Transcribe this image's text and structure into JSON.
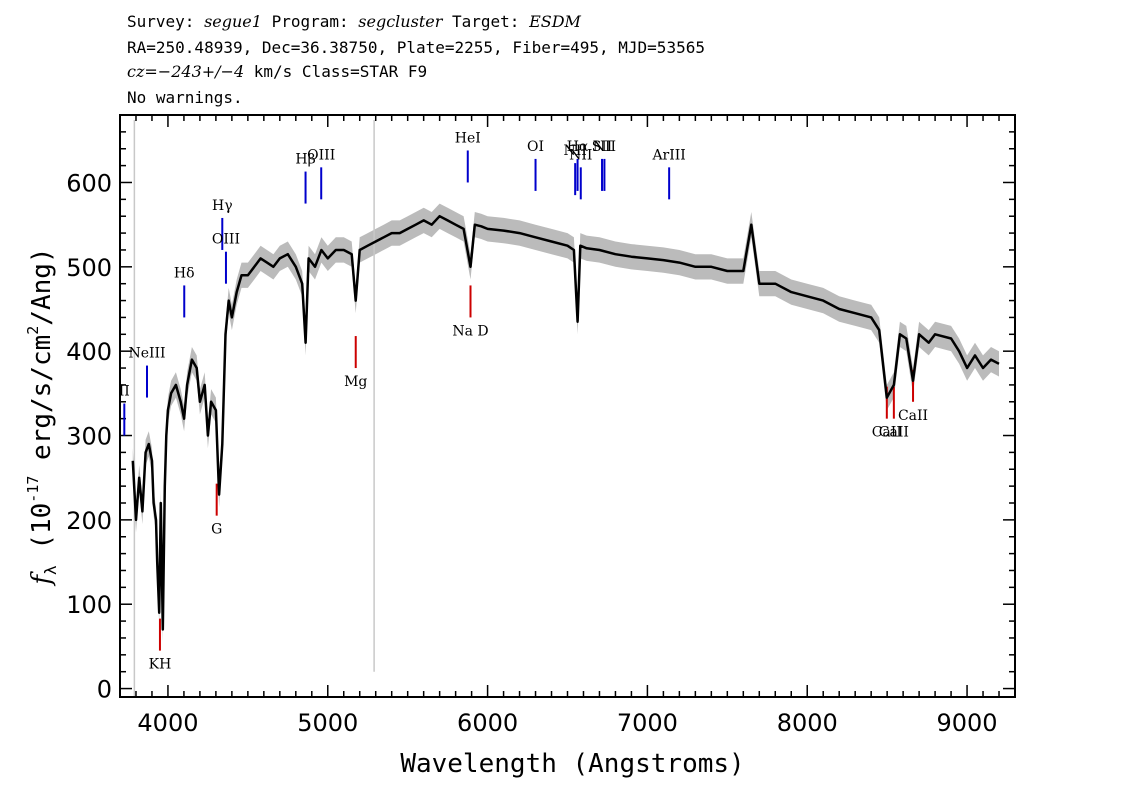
{
  "header": {
    "survey_label": "Survey:",
    "survey": "segue1",
    "program_label": "Program:",
    "program": "segcluster",
    "target_label": "Target:",
    "target": "ESDM",
    "line2": "RA=250.48939, Dec=36.38750, Plate=2255, Fiber=495, MJD=53565",
    "cz_label": "cz=",
    "cz_value": "−243+/−4",
    "cz_rest": " km/s Class=STAR F9",
    "warnings": "No warnings."
  },
  "chart_data": {
    "type": "line",
    "xlabel": "Wavelength (Angstroms)",
    "ylabel": "f_λ (10^-17 erg/s/cm^2/Ang)",
    "xlim": [
      3700,
      9300
    ],
    "ylim": [
      -10,
      680
    ],
    "xticks": [
      4000,
      5000,
      6000,
      7000,
      8000,
      9000
    ],
    "yticks": [
      0,
      100,
      200,
      300,
      400,
      500,
      600
    ],
    "colors": {
      "flux": "#000000",
      "error_band": "#bbbbbb",
      "emission": "#0000cc",
      "absorption": "#cc0000"
    },
    "series": [
      {
        "x": [
          3780,
          3800,
          3820,
          3840,
          3860,
          3880,
          3900,
          3910,
          3925,
          3933,
          3945,
          3955,
          3968,
          3980,
          3990,
          4000,
          4020,
          4050,
          4080,
          4101,
          4120,
          4150,
          4180,
          4200,
          4230,
          4250,
          4270,
          4300,
          4320,
          4340,
          4360,
          4380,
          4400,
          4430,
          4460,
          4500,
          4540,
          4580,
          4620,
          4660,
          4700,
          4750,
          4800,
          4840,
          4861,
          4880,
          4920,
          4960,
          5000,
          5050,
          5100,
          5150,
          5175,
          5200,
          5250,
          5300,
          5350,
          5400,
          5450,
          5500,
          5550,
          5600,
          5650,
          5700,
          5750,
          5800,
          5850,
          5893,
          5920,
          5960,
          6000,
          6100,
          6200,
          6300,
          6400,
          6500,
          6540,
          6563,
          6580,
          6620,
          6700,
          6800,
          6900,
          7000,
          7100,
          7200,
          7300,
          7400,
          7500,
          7600,
          7650,
          7700,
          7800,
          7900,
          8000,
          8100,
          8200,
          8300,
          8400,
          8450,
          8498,
          8542,
          8580,
          8620,
          8662,
          8700,
          8760,
          8800,
          8900,
          8950,
          9000,
          9050,
          9100,
          9150,
          9200
        ],
        "y": [
          270,
          200,
          250,
          210,
          280,
          290,
          270,
          220,
          200,
          150,
          90,
          220,
          70,
          240,
          300,
          330,
          350,
          360,
          340,
          320,
          360,
          390,
          380,
          340,
          360,
          300,
          340,
          330,
          230,
          290,
          420,
          460,
          440,
          470,
          490,
          490,
          500,
          510,
          505,
          500,
          510,
          515,
          500,
          480,
          410,
          510,
          500,
          520,
          510,
          520,
          520,
          515,
          460,
          520,
          525,
          530,
          535,
          540,
          540,
          545,
          550,
          555,
          550,
          560,
          555,
          550,
          545,
          500,
          550,
          548,
          545,
          543,
          540,
          535,
          530,
          525,
          520,
          435,
          525,
          522,
          520,
          515,
          512,
          510,
          508,
          505,
          500,
          500,
          495,
          495,
          550,
          480,
          480,
          470,
          465,
          460,
          450,
          445,
          440,
          425,
          345,
          360,
          420,
          415,
          365,
          420,
          410,
          420,
          415,
          400,
          380,
          395,
          380,
          390,
          385
        ]
      }
    ],
    "error_band_width": 15,
    "lines": [
      {
        "label": "KH",
        "x": 3950,
        "kind": "absorption",
        "y": 45
      },
      {
        "label": "NeIII",
        "x": 3869,
        "kind": "emission",
        "y": 345
      },
      {
        "label": "II",
        "x": 3727,
        "kind": "emission",
        "y": 300
      },
      {
        "label": "Hδ",
        "x": 4102,
        "kind": "emission",
        "y": 440
      },
      {
        "label": "G",
        "x": 4305,
        "kind": "absorption",
        "y": 205
      },
      {
        "label": "Hγ",
        "x": 4340,
        "kind": "emission",
        "y": 520
      },
      {
        "label": "OIII",
        "x": 4363,
        "kind": "emission",
        "y": 480
      },
      {
        "label": "Hβ",
        "x": 4861,
        "kind": "emission",
        "y": 575
      },
      {
        "label": "OIII",
        "x": 4959,
        "kind": "emission",
        "y": 580
      },
      {
        "label": "Mg",
        "x": 5175,
        "kind": "absorption",
        "y": 380
      },
      {
        "label": "HeI",
        "x": 5876,
        "kind": "emission",
        "y": 600
      },
      {
        "label": "Na D",
        "x": 5893,
        "kind": "absorption",
        "y": 440
      },
      {
        "label": "OI",
        "x": 6300,
        "kind": "emission",
        "y": 590
      },
      {
        "label": "NII",
        "x": 6548,
        "kind": "emission",
        "y": 585
      },
      {
        "label": "Hα",
        "x": 6563,
        "kind": "emission",
        "y": 590
      },
      {
        "label": "NII",
        "x": 6583,
        "kind": "emission",
        "y": 580
      },
      {
        "label": "SII",
        "x": 6716,
        "kind": "emission",
        "y": 590
      },
      {
        "label": "NII",
        "x": 6731,
        "kind": "emission",
        "y": 590
      },
      {
        "label": "ArIII",
        "x": 7136,
        "kind": "emission",
        "y": 580
      },
      {
        "label": "CaII",
        "x": 8498,
        "kind": "absorption",
        "y": 320
      },
      {
        "label": "CaII",
        "x": 8542,
        "kind": "absorption",
        "y": 320
      },
      {
        "label": "CaII",
        "x": 8662,
        "kind": "absorption",
        "y": 340
      }
    ]
  }
}
